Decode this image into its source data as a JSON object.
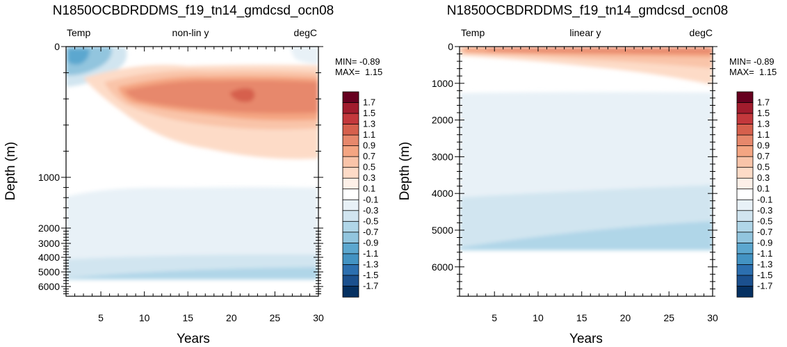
{
  "colorbar": {
    "levels": [
      "1.7",
      "1.5",
      "1.3",
      "1.1",
      "0.9",
      "0.7",
      "0.5",
      "0.3",
      "0.1",
      "-0.1",
      "-0.3",
      "-0.5",
      "-0.7",
      "-0.9",
      "-1.1",
      "-1.3",
      "-1.5",
      "-1.7"
    ],
    "colors": [
      "#67001f",
      "#a11c2d",
      "#c3383c",
      "#d6604d",
      "#e7886c",
      "#f4a582",
      "#f9c4a9",
      "#fddbc7",
      "#fdf0e8",
      "#ffffff",
      "#e8f1f7",
      "#d1e5f0",
      "#b0d6e8",
      "#92c5de",
      "#5ca7cf",
      "#4393c3",
      "#2c6faf",
      "#1b508e",
      "#053061"
    ]
  },
  "chart_data": [
    {
      "type": "heatmap",
      "title": "N1850OCBDRDDMS_f19_tn14_gmdcsd_ocn08",
      "variable": "Temp",
      "scale_note": "non-lin y",
      "units": "degC",
      "xlabel": "Years",
      "ylabel": "Depth (m)",
      "xlim": [
        1,
        30
      ],
      "x_ticks": [
        "5",
        "10",
        "15",
        "20",
        "25",
        "30"
      ],
      "y_scale": "nonlinear",
      "y_ticks": [
        "0",
        "1000",
        "2000",
        "3000",
        "4000",
        "5000",
        "6000"
      ],
      "min_label": "MIN= -0.89",
      "max_label": "MAX=  1.15",
      "anomaly_regions": [
        {
          "feature": "near-surface cold anomaly",
          "years": [
            1,
            4
          ],
          "depth_m": [
            0,
            150
          ],
          "value": -0.5
        },
        {
          "feature": "warm anomaly core",
          "years": [
            7,
            30
          ],
          "depth_m": [
            250,
            500
          ],
          "value": 0.9
        },
        {
          "feature": "deep weak cold anomaly",
          "years": [
            1,
            30
          ],
          "depth_m": [
            1200,
            5500
          ],
          "value": -0.2
        }
      ]
    },
    {
      "type": "heatmap",
      "title": "N1850OCBDRDDMS_f19_tn14_gmdcsd_ocn08",
      "variable": "Temp",
      "scale_note": "linear y",
      "units": "degC",
      "xlabel": "Years",
      "ylabel": "Depth (m)",
      "xlim": [
        1,
        30
      ],
      "x_ticks": [
        "5",
        "10",
        "15",
        "20",
        "25",
        "30"
      ],
      "y_scale": "linear",
      "ylim": [
        0,
        6800
      ],
      "y_ticks": [
        "0",
        "1000",
        "2000",
        "3000",
        "4000",
        "5000",
        "6000"
      ],
      "min_label": "MIN= -0.89",
      "max_label": "MAX=  1.15",
      "anomaly_regions": [
        {
          "feature": "upper-ocean warm anomaly",
          "years": [
            1,
            30
          ],
          "depth_m": [
            0,
            700
          ],
          "value": 0.6
        },
        {
          "feature": "deep weak cold anomaly",
          "years": [
            1,
            30
          ],
          "depth_m": [
            1250,
            5500
          ],
          "value": -0.2
        }
      ]
    }
  ]
}
